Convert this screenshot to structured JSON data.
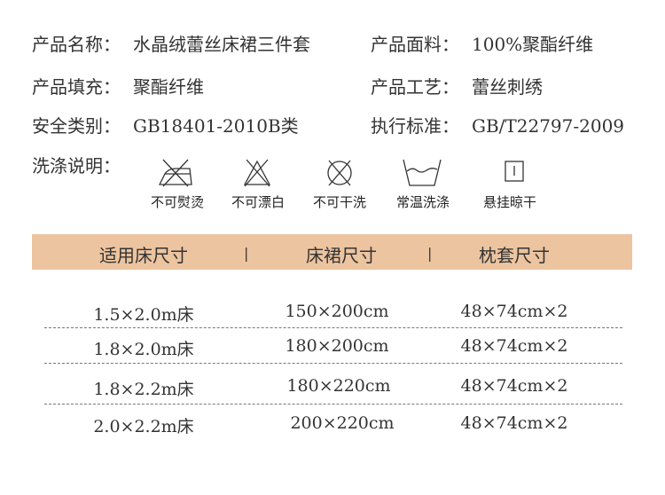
{
  "info": [
    {
      "label": "产品名称：",
      "value": "水晶绒蕾丝床裙三件套"
    },
    {
      "label": "产品面料：",
      "value": "100%聚酯纤维"
    },
    {
      "label": "产品填充：",
      "value": "聚酯纤维"
    },
    {
      "label": "产品工艺：",
      "value": "蕾丝刺绣"
    },
    {
      "label": "安全类别：",
      "value": "GB18401-2010B类"
    },
    {
      "label": "执行标准：",
      "value": "GB/T22797-2009"
    }
  ],
  "care": {
    "label": "洗涤说明：",
    "items": [
      {
        "icon": "no-iron-icon",
        "label": "不可熨烫"
      },
      {
        "icon": "no-bleach-icon",
        "label": "不可漂白"
      },
      {
        "icon": "no-dry-clean-icon",
        "label": "不可干洗"
      },
      {
        "icon": "wash-icon",
        "label": "常温洗涤"
      },
      {
        "icon": "hang-dry-icon",
        "label": "悬挂晾干"
      }
    ]
  },
  "table": {
    "header_color": "#ecc49f",
    "separator": "|",
    "headers": [
      "适用床尺寸",
      "床裙尺寸",
      "枕套尺寸"
    ],
    "rows": [
      [
        "1.5×2.0m床",
        "150×200cm",
        "48×74cm×2"
      ],
      [
        "1.8×2.0m床",
        "180×200cm",
        "48×74cm×2"
      ],
      [
        "1.8×2.2m床",
        "180×220cm",
        "48×74cm×2"
      ],
      [
        "2.0×2.2m床",
        "200×220cm",
        "48×74cm×2"
      ]
    ]
  }
}
